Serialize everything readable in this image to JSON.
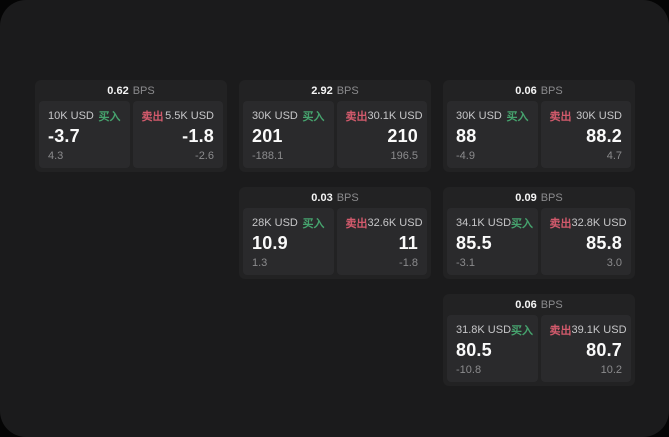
{
  "labels": {
    "bps_unit": "BPS",
    "buy": "买入",
    "sell": "卖出"
  },
  "colors": {
    "buy_accent": "#46a36e",
    "sell_accent": "#d25a6c",
    "panel_background": "#1b1b1c",
    "card_background": "#222223",
    "tile_background": "#2a2a2c"
  },
  "cards": [
    {
      "bps": "0.62",
      "buy": {
        "amount": "10K USD",
        "price": "-3.7",
        "delta": "4.3"
      },
      "sell": {
        "amount": "5.5K USD",
        "price": "-1.8",
        "delta": "-2.6"
      }
    },
    {
      "bps": "2.92",
      "buy": {
        "amount": "30K USD",
        "price": "201",
        "delta": "-188.1"
      },
      "sell": {
        "amount": "30.1K USD",
        "price": "210",
        "delta": "196.5"
      }
    },
    {
      "bps": "0.06",
      "buy": {
        "amount": "30K USD",
        "price": "88",
        "delta": "-4.9"
      },
      "sell": {
        "amount": "30K USD",
        "price": "88.2",
        "delta": "4.7"
      }
    },
    {
      "bps": "0.03",
      "buy": {
        "amount": "28K USD",
        "price": "10.9",
        "delta": "1.3"
      },
      "sell": {
        "amount": "32.6K USD",
        "price": "11",
        "delta": "-1.8"
      }
    },
    {
      "bps": "0.09",
      "buy": {
        "amount": "34.1K USD",
        "price": "85.5",
        "delta": "-3.1"
      },
      "sell": {
        "amount": "32.8K USD",
        "price": "85.8",
        "delta": "3.0"
      }
    },
    {
      "bps": "0.06",
      "buy": {
        "amount": "31.8K USD",
        "price": "80.5",
        "delta": "-10.8"
      },
      "sell": {
        "amount": "39.1K USD",
        "price": "80.7",
        "delta": "10.2"
      }
    }
  ]
}
